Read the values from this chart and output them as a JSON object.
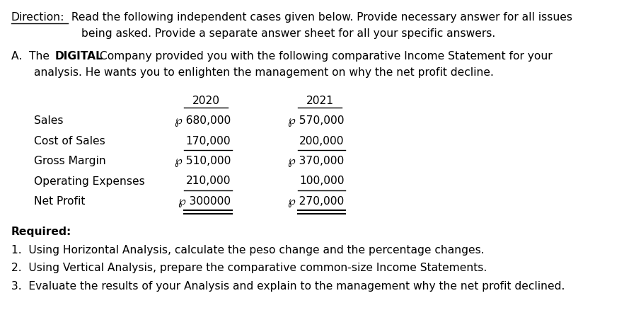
{
  "background_color": "#ffffff",
  "direction_label": "Direction:",
  "direction_text1": " Read the following independent cases given below. Provide necessary answer for all issues",
  "direction_text2": "being asked. Provide a separate answer sheet for all your specific answers.",
  "section_a_prefix": "A.  The ",
  "section_a_bold": "DIGITAL",
  "section_a_suffix": " Company provided you with the following comparative Income Statement for your",
  "section_a_line2": "analysis. He wants you to enlighten the management on why the net profit decline.",
  "col_2020": "2020",
  "col_2021": "2021",
  "rows": [
    {
      "label": "Sales",
      "val2020": "℘ 680,000",
      "val2021": "℘ 570,000",
      "underline2020": false,
      "underline2021": false,
      "double_ul2020": false,
      "double_ul2021": false
    },
    {
      "label": "Cost of Sales",
      "val2020": "170,000",
      "val2021": "200,000",
      "underline2020": true,
      "underline2021": true,
      "double_ul2020": false,
      "double_ul2021": false
    },
    {
      "label": "Gross Margin",
      "val2020": "℘ 510,000",
      "val2021": "℘ 370,000",
      "underline2020": false,
      "underline2021": false,
      "double_ul2020": false,
      "double_ul2021": false
    },
    {
      "label": "Operating Expenses",
      "val2020": "210,000",
      "val2021": "100,000",
      "underline2020": true,
      "underline2021": true,
      "double_ul2020": false,
      "double_ul2021": false
    },
    {
      "label": "Net Profit",
      "val2020": "℘ 300000",
      "val2021": "℘ 270,000",
      "underline2020": false,
      "underline2021": false,
      "double_ul2020": true,
      "double_ul2021": true
    }
  ],
  "required_label": "Required:",
  "required_items": [
    "1.  Using Horizontal Analysis, calculate the peso change and the percentage changes.",
    "2.  Using Vertical Analysis, prepare the comparative common-size Income Statements.",
    "3.  Evaluate the results of your Analysis and explain to the management why the net profit declined."
  ],
  "font_size_main": 11.2,
  "font_family": "DejaVu Sans"
}
